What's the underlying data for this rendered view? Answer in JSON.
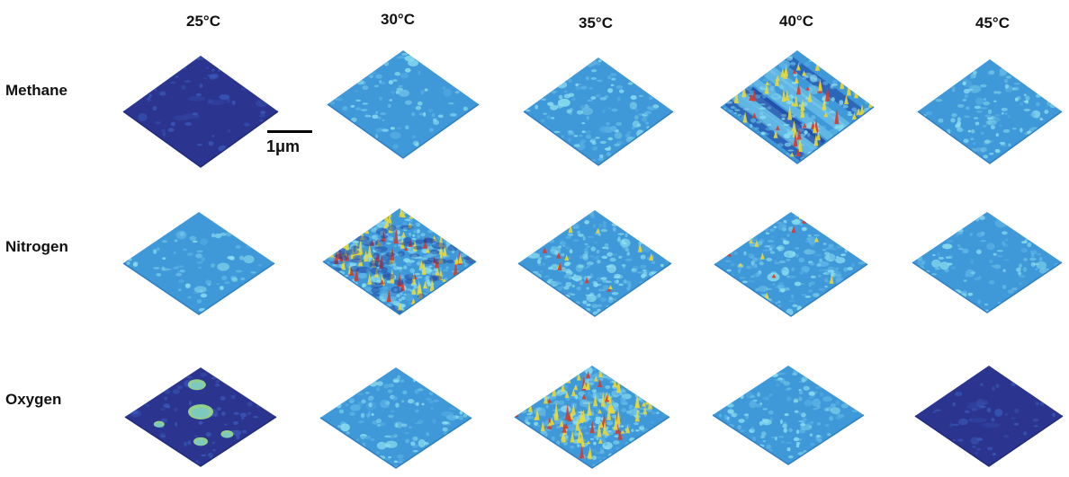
{
  "columns": [
    "25°C",
    "30°C",
    "35°C",
    "40°C",
    "45°C"
  ],
  "rows": [
    "Methane",
    "Nitrogen",
    "Oxygen"
  ],
  "scale_bar_label": "1μm",
  "colors": {
    "flat_dark_blue": "#2b3590",
    "surface_light_blue": "#3f98d8",
    "highlight_cyan": "#8ee0f0",
    "peak_yellow": "#e8d83a",
    "peak_red": "#d63a2a"
  },
  "panels": [
    {
      "row": "Methane",
      "temp": "25°C",
      "surface": "flat-dark",
      "feature_density": 0.02
    },
    {
      "row": "Methane",
      "temp": "30°C",
      "surface": "light-blue",
      "feature_density": 0.15
    },
    {
      "row": "Methane",
      "temp": "35°C",
      "surface": "light-blue",
      "feature_density": 0.35
    },
    {
      "row": "Methane",
      "temp": "40°C",
      "surface": "streaked-peaks",
      "feature_density": 0.45
    },
    {
      "row": "Methane",
      "temp": "45°C",
      "surface": "light-blue",
      "feature_density": 0.3
    },
    {
      "row": "Nitrogen",
      "temp": "25°C",
      "surface": "light-blue",
      "feature_density": 0.1
    },
    {
      "row": "Nitrogen",
      "temp": "30°C",
      "surface": "rough-peaks",
      "feature_density": 0.95
    },
    {
      "row": "Nitrogen",
      "temp": "35°C",
      "surface": "light-blue-rough",
      "feature_density": 0.6
    },
    {
      "row": "Nitrogen",
      "temp": "40°C",
      "surface": "light-blue-rough",
      "feature_density": 0.55
    },
    {
      "row": "Nitrogen",
      "temp": "45°C",
      "surface": "light-blue",
      "feature_density": 0.2
    },
    {
      "row": "Oxygen",
      "temp": "25°C",
      "surface": "dark-with-domes",
      "feature_density": 0.08
    },
    {
      "row": "Oxygen",
      "temp": "30°C",
      "surface": "light-blue",
      "feature_density": 0.3
    },
    {
      "row": "Oxygen",
      "temp": "35°C",
      "surface": "rough-peaks-light",
      "feature_density": 0.9
    },
    {
      "row": "Oxygen",
      "temp": "40°C",
      "surface": "light-blue",
      "feature_density": 0.35
    },
    {
      "row": "Oxygen",
      "temp": "45°C",
      "surface": "flat-dark",
      "feature_density": 0.0
    }
  ]
}
